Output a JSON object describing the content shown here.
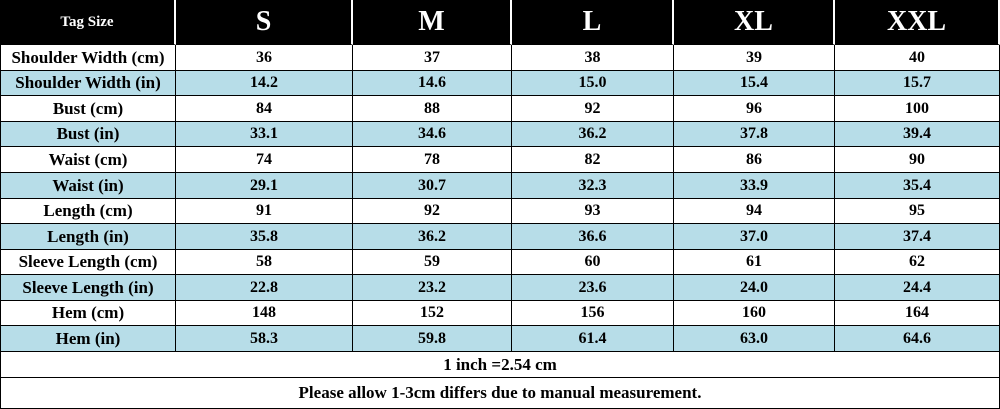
{
  "table": {
    "header": [
      "Tag Size",
      "S",
      "M",
      "L",
      "XL",
      "XXL"
    ],
    "rows": [
      [
        "Shoulder Width (cm)",
        "36",
        "37",
        "38",
        "39",
        "40"
      ],
      [
        "Shoulder Width (in)",
        "14.2",
        "14.6",
        "15.0",
        "15.4",
        "15.7"
      ],
      [
        "Bust (cm)",
        "84",
        "88",
        "92",
        "96",
        "100"
      ],
      [
        "Bust (in)",
        "33.1",
        "34.6",
        "36.2",
        "37.8",
        "39.4"
      ],
      [
        "Waist (cm)",
        "74",
        "78",
        "82",
        "86",
        "90"
      ],
      [
        "Waist (in)",
        "29.1",
        "30.7",
        "32.3",
        "33.9",
        "35.4"
      ],
      [
        "Length (cm)",
        "91",
        "92",
        "93",
        "94",
        "95"
      ],
      [
        "Length (in)",
        "35.8",
        "36.2",
        "36.6",
        "37.0",
        "37.4"
      ],
      [
        "Sleeve Length (cm)",
        "58",
        "59",
        "60",
        "61",
        "62"
      ],
      [
        "Sleeve Length (in)",
        "22.8",
        "23.2",
        "23.6",
        "24.0",
        "24.4"
      ],
      [
        "Hem (cm)",
        "148",
        "152",
        "156",
        "160",
        "164"
      ],
      [
        "Hem (in)",
        "58.3",
        "59.8",
        "61.4",
        "63.0",
        "64.6"
      ]
    ],
    "notes": [
      "1 inch =2.54 cm",
      "Please allow 1-3cm differs due to manual measurement."
    ]
  }
}
